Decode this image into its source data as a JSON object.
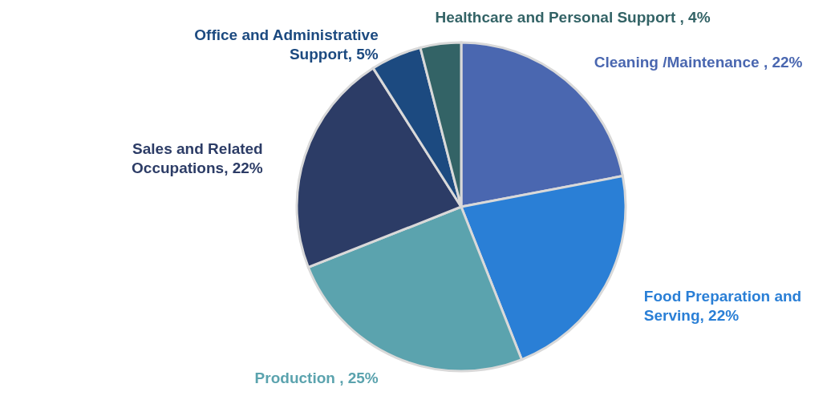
{
  "chart_data": {
    "type": "pie",
    "categories": [
      "Cleaning /Maintenance ",
      "Food Preparation and Serving",
      "Production ",
      "Sales and Related Occupations",
      "Office and Administrative Support",
      "Healthcare and Personal Support "
    ],
    "values": [
      22,
      22,
      25,
      22,
      5,
      4
    ],
    "value_labels": [
      "22%",
      "22%",
      "25%",
      "22%",
      "5%",
      "4%"
    ],
    "colors": [
      "#4a67b0",
      "#2a7fd6",
      "#5ba3ae",
      "#2c3c66",
      "#1c4a80",
      "#336366"
    ]
  }
}
